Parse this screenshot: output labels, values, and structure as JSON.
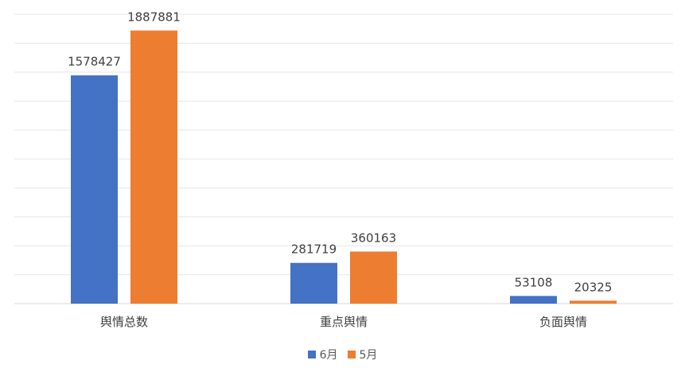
{
  "chart_data": {
    "type": "bar",
    "categories": [
      "舆情总数",
      "重点舆情",
      "负面舆情"
    ],
    "series": [
      {
        "name": "6月",
        "color": "#4472C4",
        "values": [
          1578427,
          281719,
          53108
        ]
      },
      {
        "name": "5月",
        "color": "#ED7D31",
        "values": [
          1887881,
          360163,
          20325
        ]
      }
    ],
    "ylim": [
      0,
      2000000
    ],
    "grid": true,
    "data_labels": true,
    "legend": "bottom"
  }
}
